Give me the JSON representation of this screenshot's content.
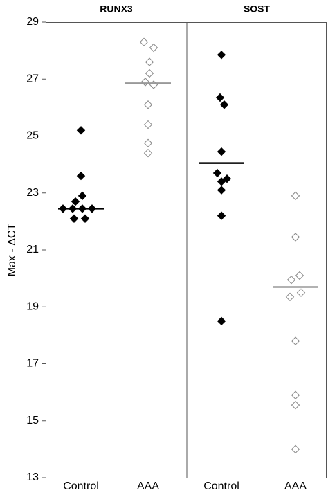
{
  "chart_data": {
    "type": "strip",
    "y_label": "Max - ΔCT",
    "ylim": [
      13,
      29
    ],
    "yticks": [
      13,
      15,
      17,
      19,
      21,
      23,
      25,
      27,
      29
    ],
    "panels": [
      {
        "title": "RUNX3",
        "categories": [
          "Control",
          "AAA"
        ],
        "groups": [
          {
            "values": [
              25.2,
              23.6,
              22.9,
              22.7,
              22.45,
              22.45,
              22.45,
              22.45,
              22.1,
              22.1
            ],
            "mean": 22.45,
            "color": "#000000",
            "mean_color": "#000000",
            "filled": true
          },
          {
            "values": [
              28.3,
              28.1,
              27.6,
              27.2,
              26.9,
              26.8,
              26.1,
              25.4,
              24.75,
              24.4
            ],
            "mean": 26.85,
            "color": "#888888",
            "mean_color": "#999999",
            "filled": false
          }
        ]
      },
      {
        "title": "SOST",
        "categories": [
          "Control",
          "AAA"
        ],
        "groups": [
          {
            "values": [
              27.85,
              26.35,
              26.1,
              24.45,
              23.7,
              23.5,
              23.4,
              23.1,
              22.2,
              18.5
            ],
            "mean": 24.05,
            "color": "#000000",
            "mean_color": "#000000",
            "filled": true
          },
          {
            "values": [
              22.9,
              21.45,
              20.1,
              19.95,
              19.5,
              19.35,
              17.8,
              15.9,
              15.55,
              14.0
            ],
            "mean": 19.7,
            "color": "#888888",
            "mean_color": "#999999",
            "filled": false
          }
        ]
      }
    ]
  }
}
